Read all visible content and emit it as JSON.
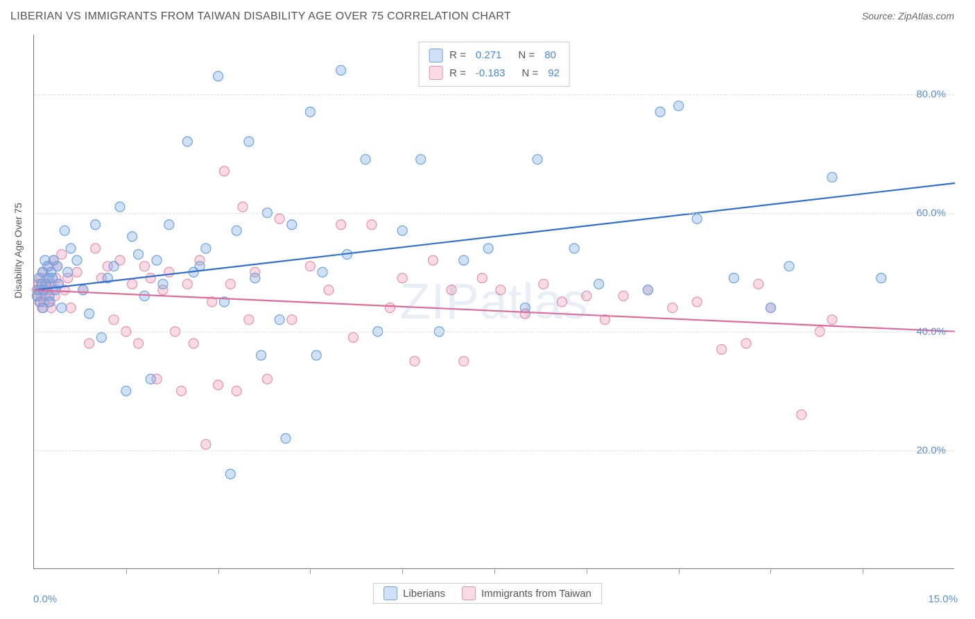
{
  "title": "LIBERIAN VS IMMIGRANTS FROM TAIWAN DISABILITY AGE OVER 75 CORRELATION CHART",
  "source": "Source: ZipAtlas.com",
  "watermark": "ZIPatlas",
  "y_axis_label": "Disability Age Over 75",
  "chart": {
    "type": "scatter",
    "xlim": [
      0,
      15
    ],
    "ylim": [
      0,
      90
    ],
    "x_ticks_minor": [
      1.5,
      3.0,
      4.5,
      6.0,
      7.5,
      9.0,
      10.5,
      12.0,
      13.5
    ],
    "x_tick_labels": [
      {
        "x": 0,
        "label": "0.0%"
      },
      {
        "x": 15,
        "label": "15.0%"
      }
    ],
    "y_gridlines": [
      20,
      40,
      60,
      80
    ],
    "y_tick_labels": [
      {
        "y": 20,
        "label": "20.0%"
      },
      {
        "y": 40,
        "label": "40.0%"
      },
      {
        "y": 60,
        "label": "60.0%"
      },
      {
        "y": 80,
        "label": "80.0%"
      }
    ],
    "background_color": "#ffffff",
    "grid_color": "#dddddd",
    "axis_color": "#777777",
    "marker_radius": 7,
    "marker_stroke_width": 1.2,
    "series": [
      {
        "name": "Liberians",
        "fill": "rgba(120,170,230,0.35)",
        "stroke": "#6aa2de",
        "line_color": "#2f6fd0",
        "line_width": 2.2,
        "R": "0.271",
        "N": "80",
        "regression": {
          "x1": 0,
          "y1": 47,
          "x2": 15,
          "y2": 65
        },
        "points": [
          [
            0.05,
            46
          ],
          [
            0.07,
            47
          ],
          [
            0.08,
            49
          ],
          [
            0.1,
            45
          ],
          [
            0.12,
            48
          ],
          [
            0.14,
            50
          ],
          [
            0.15,
            44
          ],
          [
            0.16,
            47
          ],
          [
            0.18,
            52
          ],
          [
            0.2,
            48
          ],
          [
            0.22,
            51
          ],
          [
            0.24,
            49
          ],
          [
            0.25,
            46
          ],
          [
            0.26,
            45
          ],
          [
            0.28,
            50
          ],
          [
            0.3,
            49
          ],
          [
            0.32,
            52
          ],
          [
            0.35,
            47
          ],
          [
            0.38,
            51
          ],
          [
            0.4,
            48
          ],
          [
            0.45,
            44
          ],
          [
            0.5,
            57
          ],
          [
            0.55,
            50
          ],
          [
            0.6,
            54
          ],
          [
            0.7,
            52
          ],
          [
            0.8,
            47
          ],
          [
            0.9,
            43
          ],
          [
            1.0,
            58
          ],
          [
            1.1,
            39
          ],
          [
            1.2,
            49
          ],
          [
            1.3,
            51
          ],
          [
            1.4,
            61
          ],
          [
            1.5,
            30
          ],
          [
            1.6,
            56
          ],
          [
            1.7,
            53
          ],
          [
            1.8,
            46
          ],
          [
            1.9,
            32
          ],
          [
            2.0,
            52
          ],
          [
            2.1,
            48
          ],
          [
            2.2,
            58
          ],
          [
            2.5,
            72
          ],
          [
            2.6,
            50
          ],
          [
            2.7,
            51
          ],
          [
            2.8,
            54
          ],
          [
            3.0,
            83
          ],
          [
            3.1,
            45
          ],
          [
            3.2,
            16
          ],
          [
            3.3,
            57
          ],
          [
            3.5,
            72
          ],
          [
            3.6,
            49
          ],
          [
            3.7,
            36
          ],
          [
            3.8,
            60
          ],
          [
            4.0,
            42
          ],
          [
            4.1,
            22
          ],
          [
            4.2,
            58
          ],
          [
            4.5,
            77
          ],
          [
            4.6,
            36
          ],
          [
            4.7,
            50
          ],
          [
            5.0,
            84
          ],
          [
            5.1,
            53
          ],
          [
            5.4,
            69
          ],
          [
            5.6,
            40
          ],
          [
            6.0,
            57
          ],
          [
            6.3,
            69
          ],
          [
            6.6,
            40
          ],
          [
            7.0,
            52
          ],
          [
            7.4,
            54
          ],
          [
            8.0,
            44
          ],
          [
            8.2,
            69
          ],
          [
            8.8,
            54
          ],
          [
            9.2,
            48
          ],
          [
            10.0,
            47
          ],
          [
            10.2,
            77
          ],
          [
            10.8,
            59
          ],
          [
            11.4,
            49
          ],
          [
            12.0,
            44
          ],
          [
            12.3,
            51
          ],
          [
            13.0,
            66
          ],
          [
            13.8,
            49
          ],
          [
            10.5,
            78
          ]
        ]
      },
      {
        "name": "Immigrants from Taiwan",
        "fill": "rgba(240,150,180,0.35)",
        "stroke": "#e58fb0",
        "line_color": "#e06a9a",
        "line_width": 2.2,
        "R": "-0.183",
        "N": "92",
        "regression": {
          "x1": 0,
          "y1": 47,
          "x2": 15,
          "y2": 40
        },
        "points": [
          [
            0.05,
            47
          ],
          [
            0.06,
            46
          ],
          [
            0.08,
            48
          ],
          [
            0.09,
            45
          ],
          [
            0.1,
            47
          ],
          [
            0.11,
            49
          ],
          [
            0.12,
            46
          ],
          [
            0.13,
            44
          ],
          [
            0.14,
            48
          ],
          [
            0.15,
            50
          ],
          [
            0.16,
            45
          ],
          [
            0.17,
            47
          ],
          [
            0.18,
            46
          ],
          [
            0.19,
            48
          ],
          [
            0.2,
            49
          ],
          [
            0.22,
            47
          ],
          [
            0.24,
            45
          ],
          [
            0.25,
            51
          ],
          [
            0.27,
            48
          ],
          [
            0.28,
            44
          ],
          [
            0.3,
            47
          ],
          [
            0.32,
            52
          ],
          [
            0.34,
            46
          ],
          [
            0.36,
            49
          ],
          [
            0.38,
            51
          ],
          [
            0.4,
            48
          ],
          [
            0.45,
            53
          ],
          [
            0.5,
            47
          ],
          [
            0.55,
            49
          ],
          [
            0.6,
            44
          ],
          [
            0.7,
            50
          ],
          [
            0.8,
            47
          ],
          [
            0.9,
            38
          ],
          [
            1.0,
            54
          ],
          [
            1.1,
            49
          ],
          [
            1.2,
            51
          ],
          [
            1.3,
            42
          ],
          [
            1.4,
            52
          ],
          [
            1.5,
            40
          ],
          [
            1.6,
            48
          ],
          [
            1.7,
            38
          ],
          [
            1.8,
            51
          ],
          [
            1.9,
            49
          ],
          [
            2.0,
            32
          ],
          [
            2.1,
            47
          ],
          [
            2.2,
            50
          ],
          [
            2.3,
            40
          ],
          [
            2.4,
            30
          ],
          [
            2.5,
            48
          ],
          [
            2.6,
            38
          ],
          [
            2.7,
            52
          ],
          [
            2.8,
            21
          ],
          [
            2.9,
            45
          ],
          [
            3.0,
            31
          ],
          [
            3.1,
            67
          ],
          [
            3.2,
            48
          ],
          [
            3.3,
            30
          ],
          [
            3.4,
            61
          ],
          [
            3.5,
            42
          ],
          [
            3.6,
            50
          ],
          [
            3.8,
            32
          ],
          [
            4.0,
            59
          ],
          [
            4.2,
            42
          ],
          [
            4.5,
            51
          ],
          [
            4.8,
            47
          ],
          [
            5.0,
            58
          ],
          [
            5.2,
            39
          ],
          [
            5.5,
            58
          ],
          [
            5.8,
            44
          ],
          [
            6.0,
            49
          ],
          [
            6.2,
            35
          ],
          [
            6.5,
            52
          ],
          [
            6.8,
            47
          ],
          [
            7.0,
            35
          ],
          [
            7.3,
            49
          ],
          [
            7.6,
            47
          ],
          [
            8.0,
            43
          ],
          [
            8.3,
            48
          ],
          [
            8.6,
            45
          ],
          [
            9.0,
            46
          ],
          [
            9.3,
            42
          ],
          [
            9.6,
            46
          ],
          [
            10.0,
            47
          ],
          [
            10.4,
            44
          ],
          [
            10.8,
            45
          ],
          [
            11.2,
            37
          ],
          [
            11.6,
            38
          ],
          [
            12.0,
            44
          ],
          [
            12.5,
            26
          ],
          [
            13.0,
            42
          ],
          [
            11.8,
            48
          ],
          [
            12.8,
            40
          ]
        ]
      }
    ]
  },
  "legend": {
    "series1": "Liberians",
    "series2": "Immigrants from Taiwan"
  }
}
